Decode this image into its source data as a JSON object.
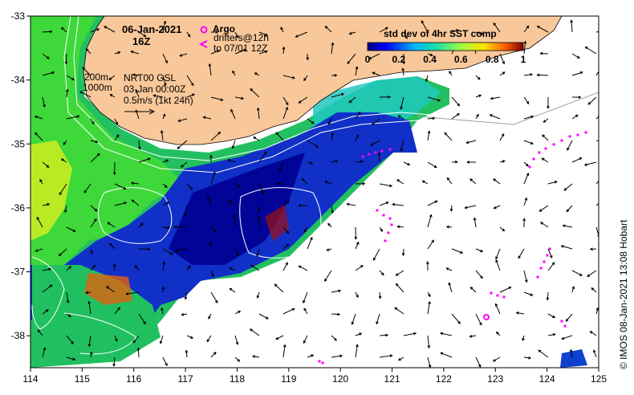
{
  "title": {
    "date": "06-Jan-2021",
    "time": "16Z"
  },
  "legend": {
    "argo_label": "Argo",
    "drifters_line1": "drifters@12h",
    "drifters_line2": "to 07/01 12Z",
    "colorbar_title": "std dev of 4hr SST comp",
    "colorbar_ticks": [
      "0",
      "0.2",
      "0.4",
      "0.6",
      "0.8",
      "1"
    ]
  },
  "contours": {
    "c200": "200m",
    "c1000": "1000m"
  },
  "currents": {
    "source": "NRT00 GSL",
    "datetime": "03-Jan 00:00Z",
    "scale": "0.5m/s (1kt 24h)"
  },
  "axes": {
    "x_ticks": [
      "114",
      "115",
      "116",
      "117",
      "118",
      "119",
      "120",
      "121",
      "122",
      "123",
      "124",
      "125"
    ],
    "y_ticks": [
      "-33",
      "-34",
      "-35",
      "-36",
      "-37",
      "-38"
    ],
    "x_range": [
      114,
      125
    ],
    "y_range": [
      -38.5,
      -33
    ]
  },
  "credit": "© IMOS 08-Jan-2021 13:08 Hobart",
  "colors": {
    "land": "#f9c89a",
    "argo": "#ff00ff",
    "drifter": "#ff00ff"
  }
}
